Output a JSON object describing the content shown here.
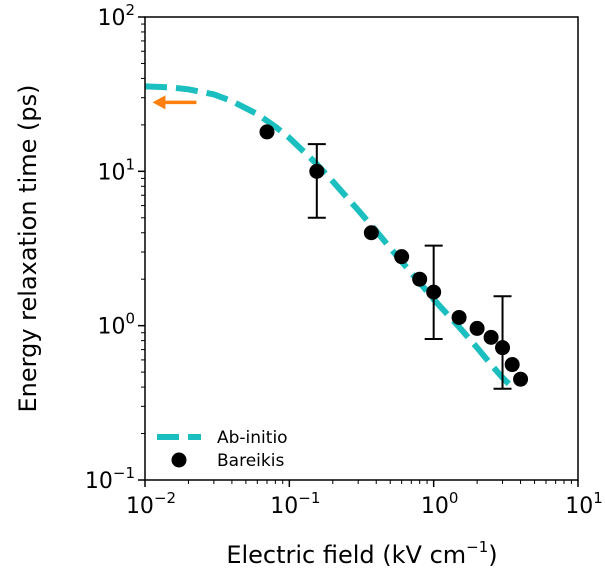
{
  "chart_data": {
    "type": "scatter",
    "xlabel": "Electric field (kV cm",
    "xlabel_exp": "−1",
    "xlabel_close": ")",
    "ylabel": "Energy relaxation time (ps)",
    "xscale": "log",
    "yscale": "log",
    "xlim": [
      0.01,
      10
    ],
    "ylim": [
      0.1,
      100
    ],
    "x_ticks": [
      {
        "base": "10",
        "exp": "−2",
        "value": 0.01
      },
      {
        "base": "10",
        "exp": "−1",
        "value": 0.1
      },
      {
        "base": "10",
        "exp": "0",
        "value": 1
      },
      {
        "base": "10",
        "exp": "1",
        "value": 10
      }
    ],
    "y_ticks": [
      {
        "base": "10",
        "exp": "−1",
        "value": 0.1
      },
      {
        "base": "10",
        "exp": "0",
        "value": 1
      },
      {
        "base": "10",
        "exp": "1",
        "value": 10
      },
      {
        "base": "10",
        "exp": "2",
        "value": 100
      }
    ],
    "grid": false,
    "legend_position": "lower-left",
    "series": [
      {
        "name": "Ab-initio",
        "style": "dashed-line",
        "color": "#1bbfbf",
        "points": [
          {
            "x": 0.01,
            "y": 35.5
          },
          {
            "x": 0.015,
            "y": 35.0
          },
          {
            "x": 0.02,
            "y": 34.0
          },
          {
            "x": 0.03,
            "y": 31.5
          },
          {
            "x": 0.04,
            "y": 28.5
          },
          {
            "x": 0.06,
            "y": 23.5
          },
          {
            "x": 0.08,
            "y": 19.5
          },
          {
            "x": 0.1,
            "y": 16.5
          },
          {
            "x": 0.15,
            "y": 11.5
          },
          {
            "x": 0.2,
            "y": 8.6
          },
          {
            "x": 0.3,
            "y": 5.6
          },
          {
            "x": 0.4,
            "y": 4.1
          },
          {
            "x": 0.6,
            "y": 2.6
          },
          {
            "x": 0.8,
            "y": 1.9
          },
          {
            "x": 1.0,
            "y": 1.48
          },
          {
            "x": 1.5,
            "y": 0.98
          },
          {
            "x": 2.0,
            "y": 0.72
          },
          {
            "x": 2.5,
            "y": 0.56
          },
          {
            "x": 3.0,
            "y": 0.46
          },
          {
            "x": 3.5,
            "y": 0.4
          }
        ]
      },
      {
        "name": "Bareikis",
        "style": "markers",
        "color": "#000000",
        "points": [
          {
            "x": 0.07,
            "y": 18.0
          },
          {
            "x": 0.155,
            "y": 10.0,
            "err_low": 5.0,
            "err_high": 15.0
          },
          {
            "x": 0.37,
            "y": 4.0
          },
          {
            "x": 0.6,
            "y": 2.8
          },
          {
            "x": 0.8,
            "y": 2.0
          },
          {
            "x": 1.0,
            "y": 1.65,
            "err_low": 0.82,
            "err_high": 3.3
          },
          {
            "x": 1.5,
            "y": 1.13
          },
          {
            "x": 2.0,
            "y": 0.96
          },
          {
            "x": 2.5,
            "y": 0.84
          },
          {
            "x": 3.0,
            "y": 0.72,
            "err_low": 0.39,
            "err_high": 1.55
          },
          {
            "x": 3.5,
            "y": 0.56
          },
          {
            "x": 4.0,
            "y": 0.45
          }
        ]
      }
    ],
    "annotations": [
      {
        "type": "arrow",
        "direction": "left",
        "color": "#ff7f0e",
        "x": 0.012,
        "y": 28
      }
    ]
  }
}
